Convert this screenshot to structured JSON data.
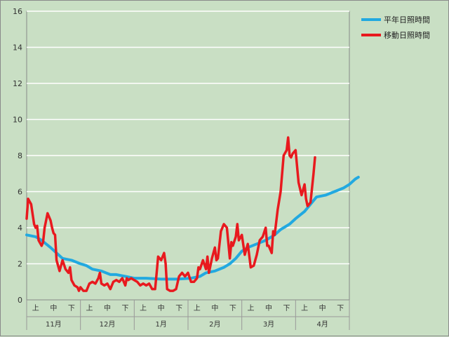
{
  "chart_data": {
    "type": "line",
    "ylim": [
      0,
      16
    ],
    "yticks": [
      "0",
      "2",
      "4",
      "6",
      "8",
      "10",
      "12",
      "14",
      "16"
    ],
    "x_sub_labels": [
      "上",
      "中",
      "下"
    ],
    "months": [
      "11月",
      "12月",
      "1月",
      "2月",
      "3月",
      "4月"
    ],
    "grid": "horizontal",
    "legend_position": "top-right",
    "colors": {
      "平年日照時間": "#22a9e0",
      "移動日照時間": "#e8191e"
    },
    "series": [
      {
        "name": "平年日照時間",
        "points": [
          [
            0,
            3.6
          ],
          [
            3,
            3.5
          ],
          [
            5,
            3.3
          ],
          [
            8,
            2.9
          ],
          [
            10,
            2.6
          ],
          [
            12,
            2.3
          ],
          [
            15,
            2.2
          ],
          [
            18,
            2.0
          ],
          [
            20,
            1.9
          ],
          [
            22,
            1.7
          ],
          [
            25,
            1.6
          ],
          [
            28,
            1.4
          ],
          [
            30,
            1.4
          ],
          [
            33,
            1.3
          ],
          [
            36,
            1.2
          ],
          [
            40,
            1.2
          ],
          [
            45,
            1.15
          ],
          [
            50,
            1.15
          ],
          [
            55,
            1.2
          ],
          [
            58,
            1.3
          ],
          [
            60,
            1.5
          ],
          [
            63,
            1.6
          ],
          [
            66,
            1.8
          ],
          [
            68,
            2.0
          ],
          [
            70,
            2.3
          ],
          [
            72,
            2.7
          ],
          [
            74,
            2.9
          ],
          [
            77,
            3.1
          ],
          [
            80,
            3.3
          ],
          [
            83,
            3.6
          ],
          [
            85,
            3.9
          ],
          [
            88,
            4.2
          ],
          [
            90,
            4.5
          ],
          [
            93,
            4.9
          ],
          [
            95,
            5.3
          ],
          [
            97,
            5.7
          ],
          [
            100,
            5.8
          ],
          [
            103,
            6.0
          ],
          [
            106,
            6.2
          ],
          [
            108,
            6.4
          ],
          [
            110,
            6.7
          ],
          [
            111,
            6.8
          ]
        ]
      },
      {
        "name": "移動日照時間",
        "points": [
          [
            0,
            4.5
          ],
          [
            0.5,
            5.6
          ],
          [
            1.5,
            5.3
          ],
          [
            2.5,
            4.2
          ],
          [
            3,
            4.0
          ],
          [
            3.5,
            4.1
          ],
          [
            4,
            3.3
          ],
          [
            5,
            3.0
          ],
          [
            5.5,
            3.2
          ],
          [
            6,
            4.0
          ],
          [
            7,
            4.8
          ],
          [
            8,
            4.4
          ],
          [
            8.5,
            4.0
          ],
          [
            9,
            3.7
          ],
          [
            9.5,
            3.6
          ],
          [
            10,
            2.2
          ],
          [
            11,
            1.6
          ],
          [
            12,
            2.2
          ],
          [
            13,
            1.7
          ],
          [
            14,
            1.5
          ],
          [
            14.5,
            1.8
          ],
          [
            15,
            1.1
          ],
          [
            16,
            0.8
          ],
          [
            17,
            0.7
          ],
          [
            17.5,
            0.5
          ],
          [
            18,
            0.7
          ],
          [
            19,
            0.5
          ],
          [
            20,
            0.5
          ],
          [
            21,
            0.9
          ],
          [
            22,
            1.0
          ],
          [
            23,
            0.9
          ],
          [
            24,
            1.2
          ],
          [
            24.5,
            1.5
          ],
          [
            25,
            0.9
          ],
          [
            26,
            0.8
          ],
          [
            27,
            0.9
          ],
          [
            28,
            0.6
          ],
          [
            29,
            1.0
          ],
          [
            30,
            1.1
          ],
          [
            31,
            1.0
          ],
          [
            32,
            1.2
          ],
          [
            33,
            0.8
          ],
          [
            33.5,
            1.2
          ],
          [
            34,
            1.1
          ],
          [
            35,
            1.2
          ],
          [
            36,
            1.1
          ],
          [
            37,
            1.0
          ],
          [
            38,
            0.8
          ],
          [
            39,
            0.9
          ],
          [
            40,
            0.8
          ],
          [
            41,
            0.9
          ],
          [
            42,
            0.6
          ],
          [
            43,
            0.6
          ],
          [
            43.5,
            1.5
          ],
          [
            44,
            2.4
          ],
          [
            45,
            2.2
          ],
          [
            46,
            2.6
          ],
          [
            46.5,
            2.0
          ],
          [
            47,
            0.6
          ],
          [
            48,
            0.5
          ],
          [
            49,
            0.5
          ],
          [
            50,
            0.6
          ],
          [
            51,
            1.3
          ],
          [
            52,
            1.5
          ],
          [
            53,
            1.3
          ],
          [
            54,
            1.5
          ],
          [
            55,
            1.0
          ],
          [
            56,
            1.0
          ],
          [
            57,
            1.2
          ],
          [
            57.5,
            1.8
          ],
          [
            58,
            1.7
          ],
          [
            59,
            2.2
          ],
          [
            60,
            1.7
          ],
          [
            60.5,
            2.4
          ],
          [
            61,
            1.5
          ],
          [
            62,
            2.3
          ],
          [
            63,
            2.9
          ],
          [
            63.5,
            2.2
          ],
          [
            64,
            2.3
          ],
          [
            65,
            3.8
          ],
          [
            66,
            4.2
          ],
          [
            67,
            4.0
          ],
          [
            68,
            2.3
          ],
          [
            68.5,
            3.2
          ],
          [
            69,
            3.0
          ],
          [
            70,
            3.5
          ],
          [
            70.5,
            4.2
          ],
          [
            71,
            3.3
          ],
          [
            72,
            3.6
          ],
          [
            73,
            2.5
          ],
          [
            74,
            3.1
          ],
          [
            75,
            1.8
          ],
          [
            76,
            1.9
          ],
          [
            77,
            2.5
          ],
          [
            78,
            3.3
          ],
          [
            79,
            3.5
          ],
          [
            80,
            4.0
          ],
          [
            80.5,
            3.0
          ],
          [
            81,
            3.0
          ],
          [
            82,
            2.6
          ],
          [
            82.5,
            3.8
          ],
          [
            83,
            3.6
          ],
          [
            84,
            5.0
          ],
          [
            85,
            6.0
          ],
          [
            86,
            8.0
          ],
          [
            87,
            8.3
          ],
          [
            87.5,
            9.0
          ],
          [
            88,
            8.0
          ],
          [
            88.5,
            7.9
          ],
          [
            89,
            8.1
          ],
          [
            90,
            8.3
          ],
          [
            91,
            6.5
          ],
          [
            92,
            5.8
          ],
          [
            93,
            6.4
          ],
          [
            93.5,
            5.6
          ],
          [
            94,
            5.2
          ],
          [
            95,
            5.4
          ],
          [
            96,
            7.0
          ],
          [
            96.5,
            7.9
          ]
        ]
      }
    ]
  }
}
